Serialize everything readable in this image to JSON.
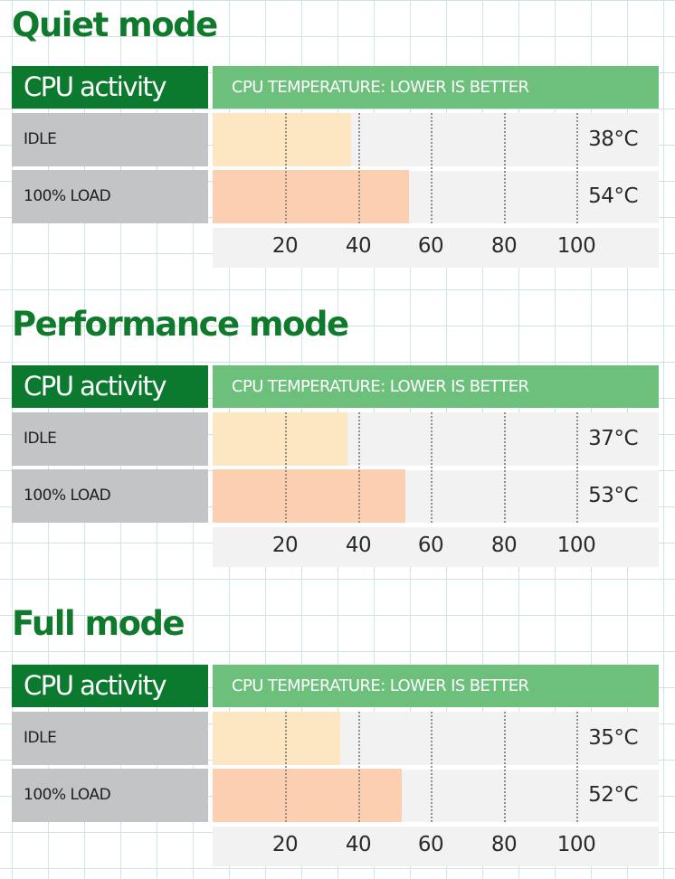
{
  "colors": {
    "title_green": "#0f7a2c",
    "header_dark_green": "#0b7a2e",
    "header_light_green": "#6dbf7c",
    "label_gray": "#c3c4c6",
    "idle_bar": "#fde7c2",
    "load_bar": "#fbcfaf",
    "plot_background": "#f2f2f3"
  },
  "chart_data": [
    {
      "type": "bar",
      "orientation": "horizontal",
      "title": "Quiet mode",
      "column_header": "CPU activity",
      "value_header": "CPU TEMPERATURE: LOWER IS BETTER",
      "categories": [
        "IDLE",
        "100% LOAD"
      ],
      "values": [
        38,
        54
      ],
      "value_labels": [
        "38°C",
        "54°C"
      ],
      "xlim": [
        0,
        120
      ],
      "ticks": [
        20,
        40,
        60,
        80,
        100
      ],
      "grid": true
    },
    {
      "type": "bar",
      "orientation": "horizontal",
      "title": "Performance mode",
      "column_header": "CPU activity",
      "value_header": "CPU TEMPERATURE: LOWER IS BETTER",
      "categories": [
        "IDLE",
        "100% LOAD"
      ],
      "values": [
        37,
        53
      ],
      "value_labels": [
        "37°C",
        "53°C"
      ],
      "xlim": [
        0,
        120
      ],
      "ticks": [
        20,
        40,
        60,
        80,
        100
      ],
      "grid": true
    },
    {
      "type": "bar",
      "orientation": "horizontal",
      "title": "Full mode",
      "column_header": "CPU activity",
      "value_header": "CPU TEMPERATURE: LOWER IS BETTER",
      "categories": [
        "IDLE",
        "100% LOAD"
      ],
      "values": [
        35,
        52
      ],
      "value_labels": [
        "35°C",
        "52°C"
      ],
      "xlim": [
        0,
        120
      ],
      "ticks": [
        20,
        40,
        60,
        80,
        100
      ],
      "grid": true
    }
  ]
}
